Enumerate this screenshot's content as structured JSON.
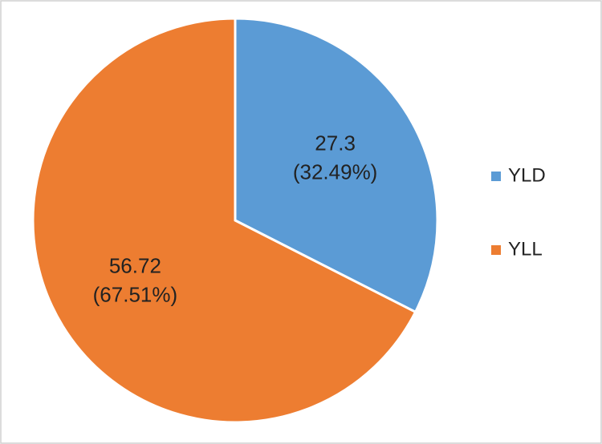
{
  "chart_data": {
    "type": "pie",
    "categories": [
      "YLD",
      "YLL"
    ],
    "values": [
      27.3,
      56.72
    ],
    "percent_labels": [
      "(32.49%)",
      "(67.51%)"
    ],
    "colors": [
      "#5b9bd5",
      "#ed7d31"
    ],
    "legend": "right"
  }
}
